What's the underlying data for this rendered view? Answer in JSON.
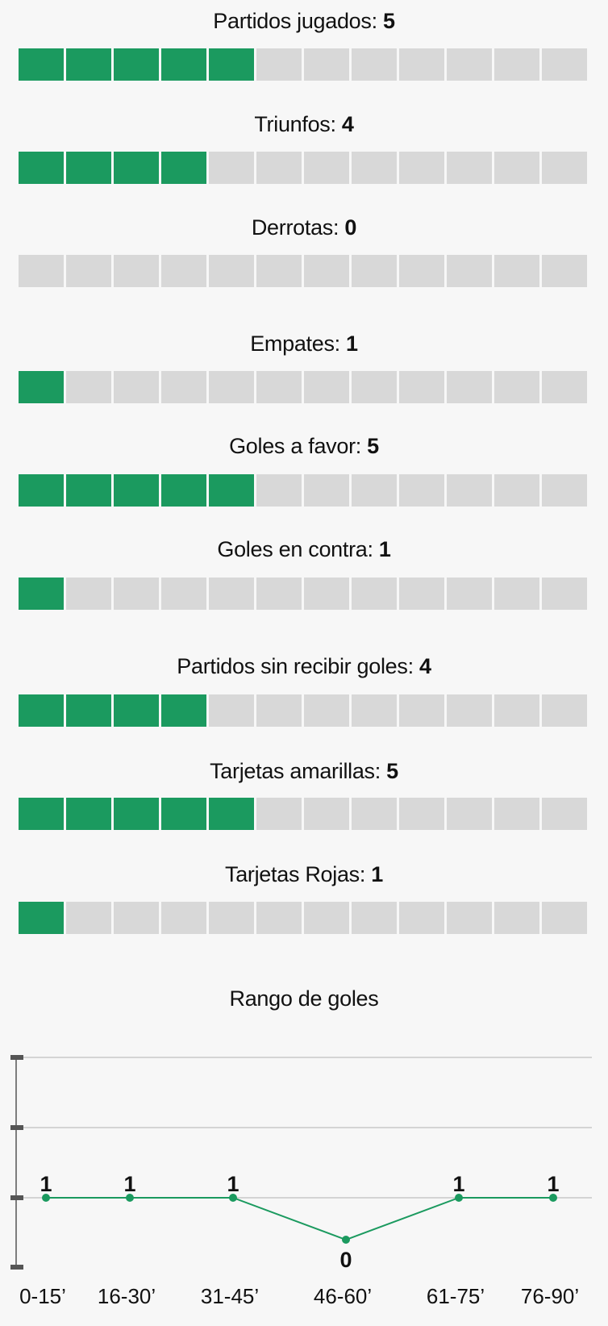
{
  "stats": [
    {
      "label": "Partidos jugados:",
      "value": "5",
      "count": 5
    },
    {
      "label": "Triunfos:",
      "value": "4",
      "count": 4
    },
    {
      "label": "Derrotas:",
      "value": "0",
      "count": 0
    },
    {
      "label": "Empates:",
      "value": "1",
      "count": 1
    },
    {
      "label": "Goles a favor:",
      "value": "5",
      "count": 5
    },
    {
      "label": "Goles en contra:",
      "value": "1",
      "count": 1
    },
    {
      "label": "Partidos sin recibir goles:",
      "value": "4",
      "count": 4
    },
    {
      "label": "Tarjetas amarillas:",
      "value": "5",
      "count": 5
    },
    {
      "label": "Tarjetas Rojas:",
      "value": "1",
      "count": 1
    }
  ],
  "bar_segments": 12,
  "colors": {
    "filled": "#1b9a5f",
    "empty": "#d8d8d8",
    "line": "#1b9a5f",
    "grid": "#c8c8c8",
    "axis": "#555555"
  },
  "chart_data": {
    "type": "line",
    "title": "Rango de goles",
    "xlabel": "",
    "ylabel": "",
    "categories": [
      "0-15’",
      "16-30’",
      "31-45’",
      "46-60’",
      "61-75’",
      "76-90’"
    ],
    "values": [
      1,
      1,
      1,
      0,
      1,
      1
    ],
    "data_labels": [
      "1",
      "1",
      "1",
      "0",
      "1",
      "1"
    ],
    "ylim": [
      -0.6,
      2
    ],
    "grid": true,
    "legend": "none"
  }
}
